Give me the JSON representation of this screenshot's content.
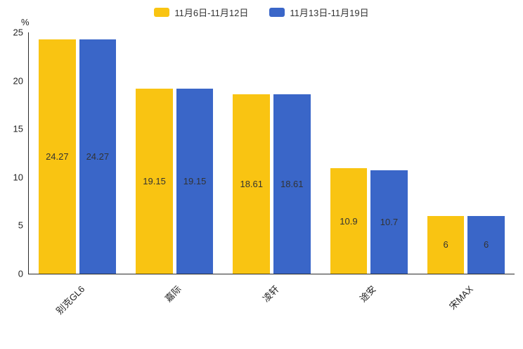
{
  "legend": {
    "items": [
      {
        "label": "11月6日-11月12日",
        "color": "#F9C412"
      },
      {
        "label": "11月13日-11月19日",
        "color": "#3A66C8"
      }
    ]
  },
  "chart_data": {
    "type": "bar",
    "categories": [
      "别克GL6",
      "嘉际",
      "凌轩",
      "途安",
      "宋MAX"
    ],
    "series": [
      {
        "name": "11月6日-11月12日",
        "color": "#F9C412",
        "values": [
          24.27,
          19.15,
          18.61,
          10.9,
          6
        ]
      },
      {
        "name": "11月13日-11月19日",
        "color": "#3A66C8",
        "values": [
          24.27,
          19.15,
          18.61,
          10.7,
          6
        ]
      }
    ],
    "title": "",
    "xlabel": "",
    "ylabel": "%",
    "ylim": [
      0,
      25
    ],
    "yticks": [
      0,
      5,
      10,
      15,
      20,
      25
    ],
    "grid": false,
    "legend_position": "top",
    "value_labels": "inside-center",
    "x_label_rotation": 45
  }
}
